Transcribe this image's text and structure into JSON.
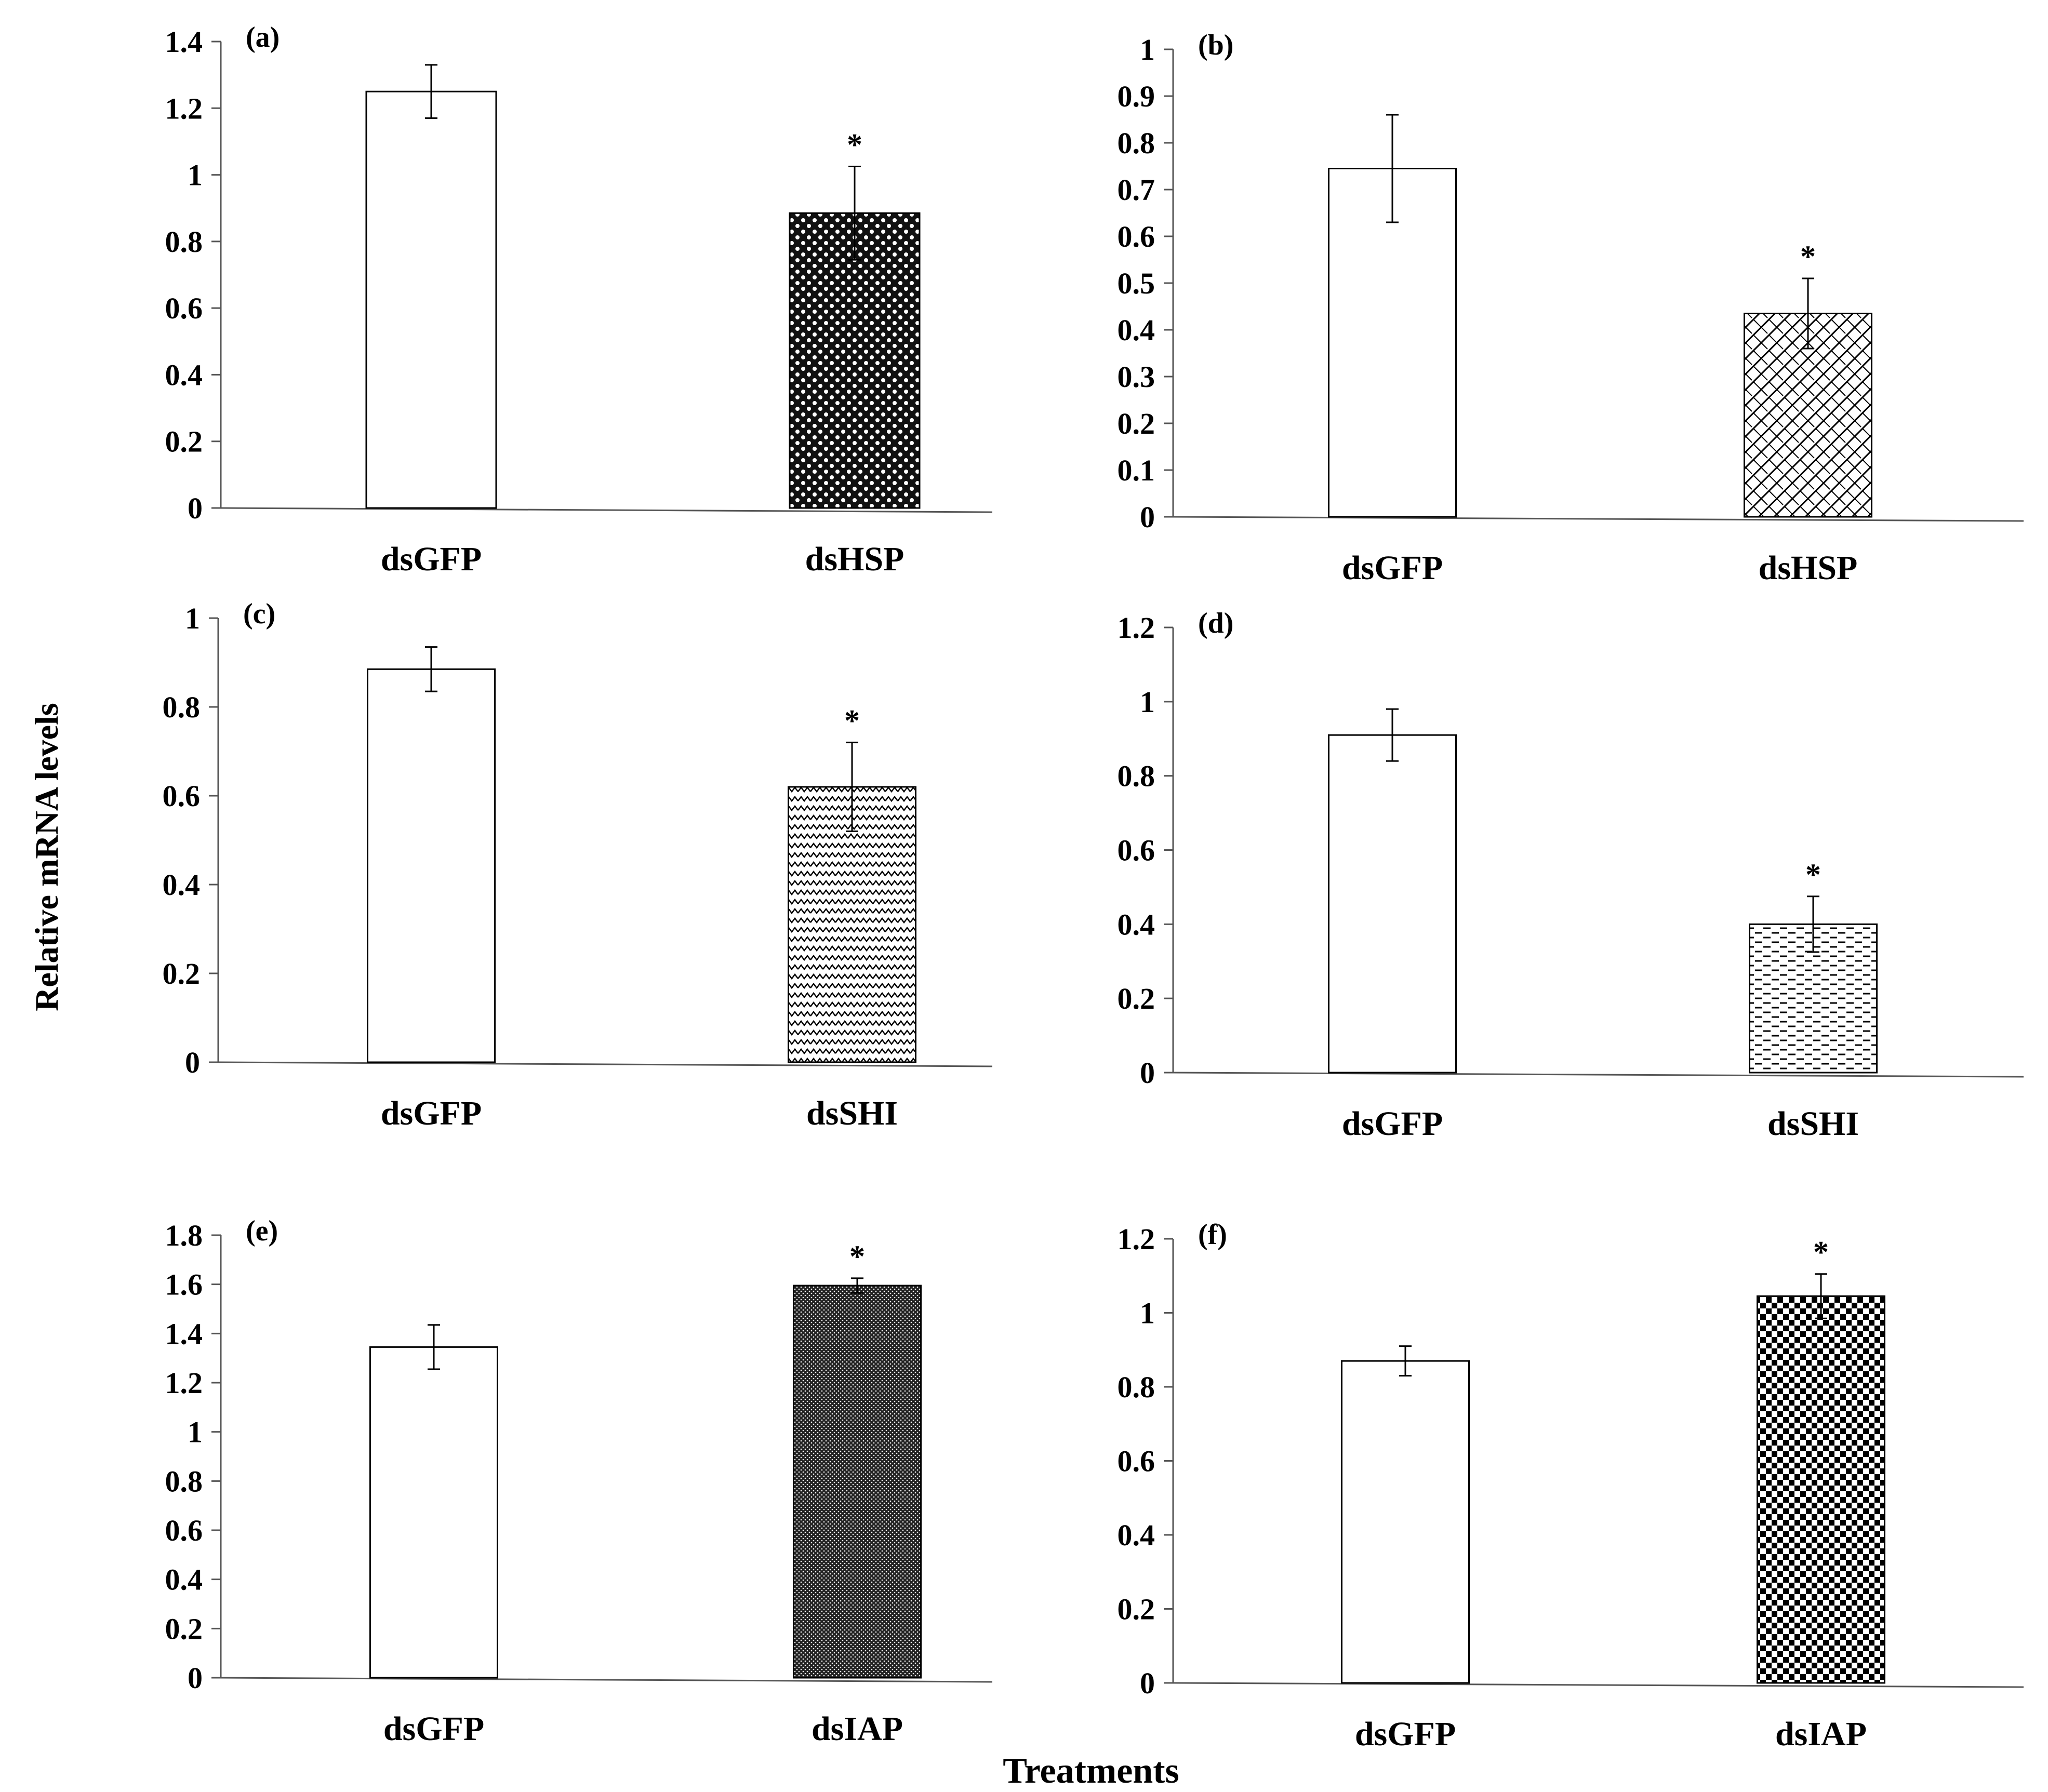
{
  "figure": {
    "y_axis_title": "Relative mRNA levels",
    "x_axis_title": "Treatments"
  },
  "chart_data": [
    {
      "type": "bar",
      "panel": "(a)",
      "title": "",
      "xlabel": "",
      "ylabel": "",
      "categories": [
        "dsGFP",
        "dsHSP"
      ],
      "values": [
        1.25,
        0.885
      ],
      "errors": [
        0.08,
        0.14
      ],
      "significance": [
        "",
        "*"
      ],
      "patterns": [
        "none",
        "dots"
      ],
      "ylim": [
        0,
        1.4
      ],
      "yticks": [
        "0",
        "0.2",
        "0.4",
        "0.6",
        "0.8",
        "1",
        "1.2",
        "1.4"
      ],
      "grid": false
    },
    {
      "type": "bar",
      "panel": "(b)",
      "title": "",
      "xlabel": "",
      "ylabel": "",
      "categories": [
        "dsGFP",
        "dsHSP"
      ],
      "values": [
        0.745,
        0.435
      ],
      "errors": [
        0.115,
        0.075
      ],
      "significance": [
        "",
        "*"
      ],
      "patterns": [
        "none",
        "bricks"
      ],
      "ylim": [
        0,
        1
      ],
      "yticks": [
        "0",
        "0.1",
        "0.2",
        "0.3",
        "0.4",
        "0.5",
        "0.6",
        "0.7",
        "0.8",
        "0.9",
        "1"
      ],
      "grid": false
    },
    {
      "type": "bar",
      "panel": "(c)",
      "title": "",
      "xlabel": "",
      "ylabel": "",
      "categories": [
        "dsGFP",
        "dsSHI"
      ],
      "values": [
        0.885,
        0.62
      ],
      "errors": [
        0.05,
        0.1
      ],
      "significance": [
        "",
        "*"
      ],
      "patterns": [
        "none",
        "zigzag"
      ],
      "ylim": [
        0,
        1
      ],
      "yticks": [
        "0",
        "0.2",
        "0.4",
        "0.6",
        "0.8",
        "1"
      ],
      "grid": false
    },
    {
      "type": "bar",
      "panel": "(d)",
      "title": "",
      "xlabel": "",
      "ylabel": "",
      "categories": [
        "dsGFP",
        "dsSHI"
      ],
      "values": [
        0.91,
        0.4
      ],
      "errors": [
        0.07,
        0.075
      ],
      "significance": [
        "",
        "*"
      ],
      "patterns": [
        "none",
        "dashes"
      ],
      "ylim": [
        0,
        1.2
      ],
      "yticks": [
        "0",
        "0.2",
        "0.4",
        "0.6",
        "0.8",
        "1",
        "1.2"
      ],
      "grid": false
    },
    {
      "type": "bar",
      "panel": "(e)",
      "title": "",
      "xlabel": "",
      "ylabel": "",
      "categories": [
        "dsGFP",
        "dsIAP"
      ],
      "values": [
        1.345,
        1.595
      ],
      "errors": [
        0.09,
        0.03
      ],
      "significance": [
        "",
        "*"
      ],
      "patterns": [
        "none",
        "fine"
      ],
      "ylim": [
        0,
        1.8
      ],
      "yticks": [
        "0",
        "0.2",
        "0.4",
        "0.6",
        "0.8",
        "1",
        "1.2",
        "1.4",
        "1.6",
        "1.8"
      ],
      "grid": false
    },
    {
      "type": "bar",
      "panel": "(f)",
      "title": "",
      "xlabel": "",
      "ylabel": "",
      "categories": [
        "dsGFP",
        "dsIAP"
      ],
      "values": [
        0.87,
        1.045
      ],
      "errors": [
        0.04,
        0.06
      ],
      "significance": [
        "",
        "*"
      ],
      "patterns": [
        "none",
        "checker"
      ],
      "ylim": [
        0,
        1.2
      ],
      "yticks": [
        "0",
        "0.2",
        "0.4",
        "0.6",
        "0.8",
        "1",
        "1.2"
      ],
      "grid": false
    }
  ]
}
